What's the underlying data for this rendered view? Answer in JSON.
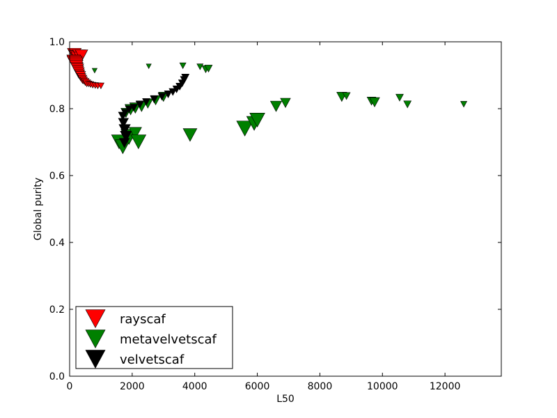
{
  "chart_data": {
    "type": "scatter",
    "title": "",
    "xlabel": "L50",
    "ylabel": "Global purity",
    "xlim": [
      0,
      13800
    ],
    "ylim": [
      0.0,
      1.0
    ],
    "xticks": [
      "0",
      "2000",
      "4000",
      "6000",
      "8000",
      "10000",
      "12000"
    ],
    "xtick_values": [
      0,
      2000,
      4000,
      6000,
      8000,
      10000,
      12000
    ],
    "yticks": [
      "0.0",
      "0.2",
      "0.4",
      "0.6",
      "0.8",
      "1.0"
    ],
    "ytick_values": [
      0.0,
      0.2,
      0.4,
      0.6,
      0.8,
      1.0
    ],
    "grid": false,
    "legend_position": "lower-left",
    "marker": "triangle-down",
    "series": [
      {
        "name": "rayscaf",
        "color": "#ff0000",
        "points": [
          {
            "x": 150,
            "y": 0.965,
            "s": 11
          },
          {
            "x": 180,
            "y": 0.96,
            "s": 11
          },
          {
            "x": 220,
            "y": 0.958,
            "s": 11
          },
          {
            "x": 260,
            "y": 0.955,
            "s": 11
          },
          {
            "x": 300,
            "y": 0.962,
            "s": 10
          },
          {
            "x": 340,
            "y": 0.955,
            "s": 10
          },
          {
            "x": 380,
            "y": 0.962,
            "s": 10
          },
          {
            "x": 130,
            "y": 0.945,
            "s": 11
          },
          {
            "x": 160,
            "y": 0.94,
            "s": 12
          },
          {
            "x": 190,
            "y": 0.935,
            "s": 12
          },
          {
            "x": 210,
            "y": 0.93,
            "s": 11
          },
          {
            "x": 230,
            "y": 0.925,
            "s": 10
          },
          {
            "x": 250,
            "y": 0.92,
            "s": 10
          },
          {
            "x": 270,
            "y": 0.915,
            "s": 9
          },
          {
            "x": 290,
            "y": 0.91,
            "s": 9
          },
          {
            "x": 320,
            "y": 0.905,
            "s": 8
          },
          {
            "x": 350,
            "y": 0.9,
            "s": 8
          },
          {
            "x": 380,
            "y": 0.895,
            "s": 7
          },
          {
            "x": 410,
            "y": 0.89,
            "s": 7
          },
          {
            "x": 450,
            "y": 0.886,
            "s": 6
          },
          {
            "x": 500,
            "y": 0.882,
            "s": 6
          },
          {
            "x": 550,
            "y": 0.878,
            "s": 6
          },
          {
            "x": 610,
            "y": 0.876,
            "s": 5
          },
          {
            "x": 670,
            "y": 0.874,
            "s": 5
          },
          {
            "x": 740,
            "y": 0.872,
            "s": 5
          },
          {
            "x": 820,
            "y": 0.871,
            "s": 5
          },
          {
            "x": 900,
            "y": 0.87,
            "s": 5
          },
          {
            "x": 1000,
            "y": 0.87,
            "s": 5
          }
        ]
      },
      {
        "name": "metavelvetscaf",
        "color": "#008000",
        "points": [
          {
            "x": 800,
            "y": 0.915,
            "s": 4
          },
          {
            "x": 2530,
            "y": 0.928,
            "s": 4
          },
          {
            "x": 3620,
            "y": 0.93,
            "s": 5
          },
          {
            "x": 4170,
            "y": 0.927,
            "s": 5
          },
          {
            "x": 4350,
            "y": 0.92,
            "s": 6
          },
          {
            "x": 4440,
            "y": 0.922,
            "s": 6
          },
          {
            "x": 1580,
            "y": 0.705,
            "s": 12
          },
          {
            "x": 1700,
            "y": 0.69,
            "s": 12
          },
          {
            "x": 1900,
            "y": 0.72,
            "s": 13
          },
          {
            "x": 2100,
            "y": 0.73,
            "s": 10
          },
          {
            "x": 2200,
            "y": 0.705,
            "s": 12
          },
          {
            "x": 3850,
            "y": 0.725,
            "s": 11
          },
          {
            "x": 5600,
            "y": 0.745,
            "s": 13
          },
          {
            "x": 5900,
            "y": 0.76,
            "s": 12
          },
          {
            "x": 6000,
            "y": 0.77,
            "s": 12
          },
          {
            "x": 1800,
            "y": 0.79,
            "s": 8
          },
          {
            "x": 1950,
            "y": 0.8,
            "s": 9
          },
          {
            "x": 2100,
            "y": 0.805,
            "s": 9
          },
          {
            "x": 2300,
            "y": 0.81,
            "s": 9
          },
          {
            "x": 2500,
            "y": 0.818,
            "s": 8
          },
          {
            "x": 2750,
            "y": 0.828,
            "s": 8
          },
          {
            "x": 3000,
            "y": 0.838,
            "s": 8
          },
          {
            "x": 6600,
            "y": 0.81,
            "s": 9
          },
          {
            "x": 6900,
            "y": 0.82,
            "s": 8
          },
          {
            "x": 8700,
            "y": 0.838,
            "s": 8
          },
          {
            "x": 8850,
            "y": 0.84,
            "s": 6
          },
          {
            "x": 9650,
            "y": 0.825,
            "s": 7
          },
          {
            "x": 9750,
            "y": 0.822,
            "s": 8
          },
          {
            "x": 10550,
            "y": 0.835,
            "s": 6
          },
          {
            "x": 10800,
            "y": 0.815,
            "s": 6
          },
          {
            "x": 12600,
            "y": 0.815,
            "s": 5
          }
        ]
      },
      {
        "name": "velvetscaf",
        "color": "#000000",
        "points": [
          {
            "x": 1750,
            "y": 0.7,
            "s": 8
          },
          {
            "x": 1800,
            "y": 0.72,
            "s": 9
          },
          {
            "x": 1760,
            "y": 0.74,
            "s": 9
          },
          {
            "x": 1720,
            "y": 0.76,
            "s": 8
          },
          {
            "x": 1700,
            "y": 0.78,
            "s": 7
          },
          {
            "x": 1780,
            "y": 0.79,
            "s": 6
          },
          {
            "x": 1900,
            "y": 0.8,
            "s": 6
          },
          {
            "x": 2050,
            "y": 0.805,
            "s": 6
          },
          {
            "x": 2250,
            "y": 0.815,
            "s": 6
          },
          {
            "x": 2450,
            "y": 0.822,
            "s": 6
          },
          {
            "x": 2700,
            "y": 0.83,
            "s": 6
          },
          {
            "x": 2950,
            "y": 0.838,
            "s": 6
          },
          {
            "x": 3150,
            "y": 0.845,
            "s": 6
          },
          {
            "x": 3300,
            "y": 0.852,
            "s": 6
          },
          {
            "x": 3420,
            "y": 0.86,
            "s": 6
          },
          {
            "x": 3520,
            "y": 0.868,
            "s": 6
          },
          {
            "x": 3600,
            "y": 0.878,
            "s": 6
          },
          {
            "x": 3660,
            "y": 0.888,
            "s": 6
          },
          {
            "x": 3700,
            "y": 0.895,
            "s": 6
          }
        ]
      }
    ]
  }
}
